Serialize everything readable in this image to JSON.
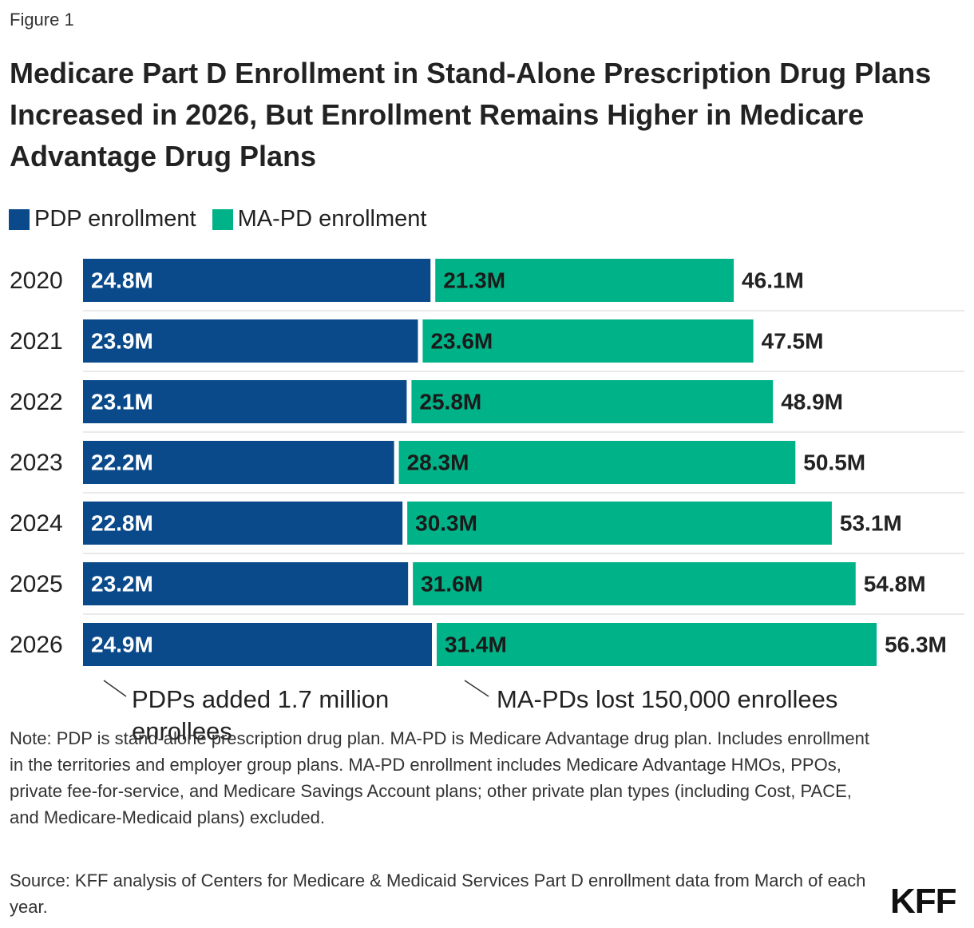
{
  "figure_label": "Figure 1",
  "title": "Medicare Part D Enrollment in Stand-Alone Prescription Drug Plans Increased in 2026, But Enrollment Remains Higher in Medicare Advantage Drug Plans",
  "chart_data": {
    "type": "bar",
    "orientation": "horizontal",
    "stacked": true,
    "categories": [
      "2020",
      "2021",
      "2022",
      "2023",
      "2024",
      "2025",
      "2026"
    ],
    "series": [
      {
        "name": "PDP enrollment",
        "color": "#0a4a8b",
        "label_color": "#ffffff",
        "values": [
          24.8,
          23.9,
          23.1,
          22.2,
          22.8,
          23.2,
          24.9
        ],
        "value_labels": [
          "24.8M",
          "23.9M",
          "23.1M",
          "22.2M",
          "22.8M",
          "23.2M",
          "24.9M"
        ]
      },
      {
        "name": "MA-PD enrollment",
        "color": "#00b287",
        "label_color": "#1a1a1a",
        "values": [
          21.3,
          23.6,
          25.8,
          28.3,
          30.3,
          31.6,
          31.4
        ],
        "value_labels": [
          "21.3M",
          "23.6M",
          "25.8M",
          "28.3M",
          "30.3M",
          "31.6M",
          "31.4M"
        ]
      }
    ],
    "totals": {
      "values": [
        46.1,
        47.5,
        48.9,
        50.5,
        53.1,
        54.8,
        56.3
      ],
      "value_labels": [
        "46.1M",
        "47.5M",
        "48.9M",
        "50.5M",
        "53.1M",
        "54.8M",
        "56.3M"
      ]
    },
    "annotations": [
      "PDPs added 1.7 million enrollees",
      "MA-PDs lost 150,000 enrollees"
    ]
  },
  "note": "Note: PDP is stand-alone prescription drug plan. MA-PD is Medicare Advantage drug plan. Includes enrollment in the territories and employer group plans. MA-PD enrollment includes Medicare Advantage HMOs, PPOs, private fee-for-service, and Medicare Savings Account plans; other private plan types (including Cost, PACE, and Medicare-Medicaid plans) excluded.",
  "source": "Source: KFF analysis of Centers for Medicare & Medicaid Services Part D enrollment data from March of each year.",
  "logo": "KFF"
}
